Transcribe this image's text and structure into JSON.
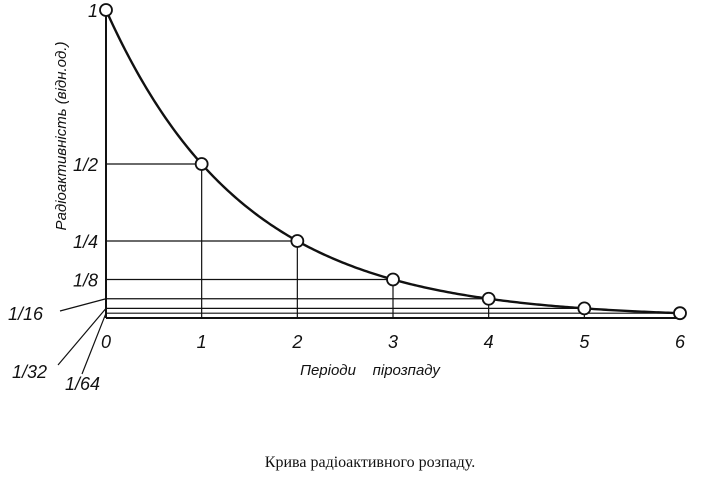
{
  "chart_data": {
    "type": "line",
    "title": "",
    "xlabel": "Періоди    пірозпаду",
    "ylabel": "Радіоактивність (відн.од.)",
    "x": [
      0,
      1,
      2,
      3,
      4,
      5,
      6
    ],
    "series": [
      {
        "values": [
          1,
          0.5,
          0.25,
          0.125,
          0.0625,
          0.03125,
          0.015625
        ]
      }
    ],
    "x_ticks": [
      "0",
      "1",
      "2",
      "3",
      "4",
      "5",
      "6"
    ],
    "y_ticks": [
      "1",
      "1/2",
      "1/4",
      "1/8",
      "1/16",
      "1/32",
      "1/64"
    ],
    "xlim": [
      0,
      6
    ],
    "ylim": [
      0,
      1
    ],
    "grid": false,
    "legend": "none",
    "color": "#111111"
  },
  "caption": "Крива радіоактивного розпаду."
}
